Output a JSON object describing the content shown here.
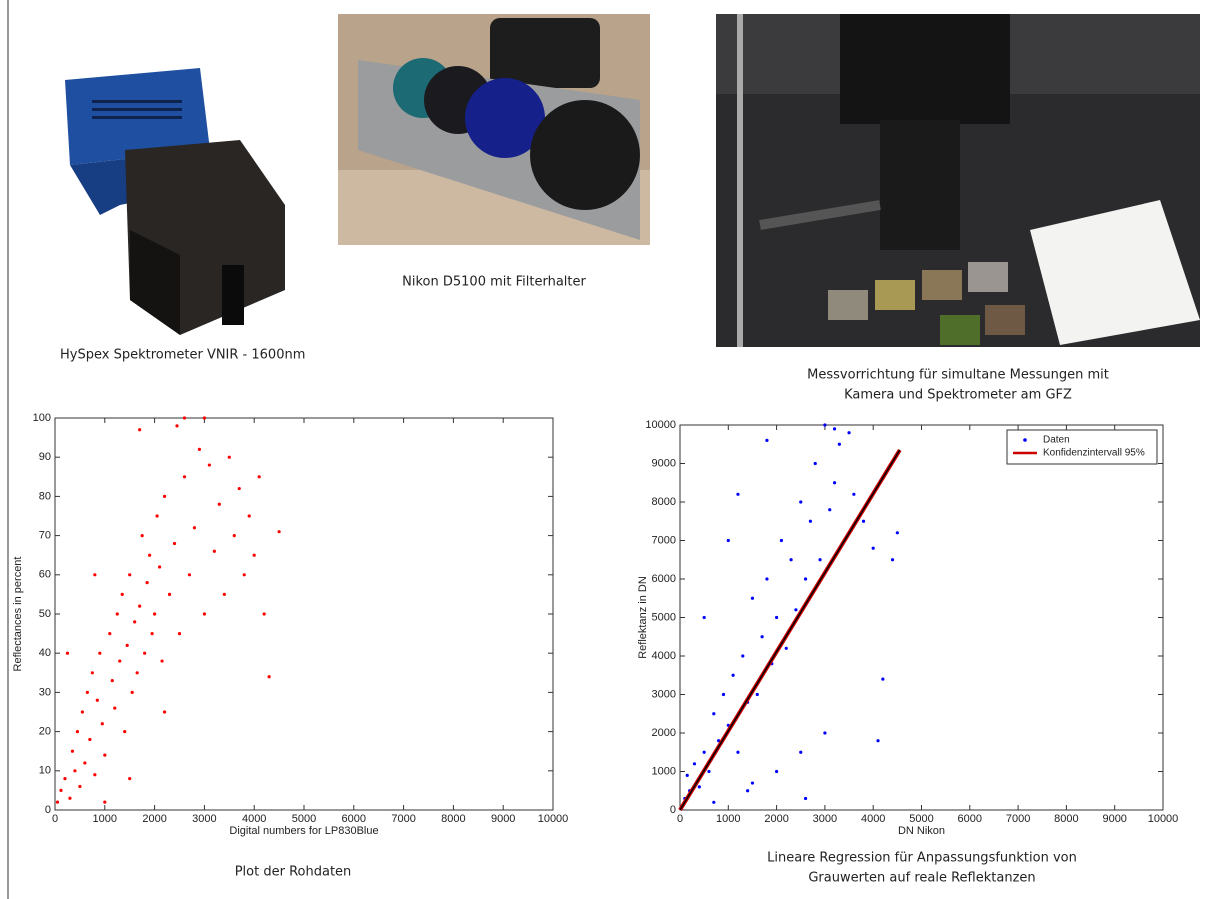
{
  "images": [
    {
      "caption": [
        "HySpex Spektrometer VNIR - 1600nm"
      ]
    },
    {
      "caption": [
        "Nikon D5100 mit Filterhalter"
      ]
    },
    {
      "caption": [
        "Messvorrichtung für simultane Messungen mit",
        "Kamera und Spektrometer am GFZ"
      ]
    }
  ],
  "chart_data": [
    {
      "type": "scatter",
      "caption": [
        "Plot der Rohdaten"
      ],
      "xlabel": "Digital numbers for LP830Blue",
      "ylabel": "Reflectances in percent",
      "xlim": [
        0,
        10000
      ],
      "ylim": [
        0,
        100
      ],
      "xticks": [
        0,
        1000,
        2000,
        3000,
        4000,
        5000,
        6000,
        7000,
        8000,
        9000,
        10000
      ],
      "yticks": [
        0,
        10,
        20,
        30,
        40,
        50,
        60,
        70,
        80,
        90,
        100
      ],
      "series": [
        {
          "color": "#ff0000",
          "x": [
            50,
            120,
            200,
            300,
            350,
            400,
            450,
            500,
            550,
            600,
            650,
            700,
            750,
            800,
            850,
            900,
            950,
            1000,
            1100,
            1150,
            1200,
            1250,
            1300,
            1350,
            1400,
            1450,
            1500,
            1550,
            1600,
            1650,
            1700,
            1750,
            1800,
            1850,
            1900,
            1950,
            2000,
            2050,
            2100,
            2150,
            2200,
            2300,
            2400,
            2450,
            2500,
            2600,
            2700,
            2800,
            2900,
            3000,
            3100,
            3200,
            3300,
            3400,
            3500,
            3600,
            3700,
            3800,
            3900,
            4000,
            4100,
            4200,
            4300,
            4500,
            250,
            800,
            1500,
            2200,
            2600,
            3000,
            1000,
            1700
          ],
          "y": [
            2,
            5,
            8,
            3,
            15,
            10,
            20,
            6,
            25,
            12,
            30,
            18,
            35,
            9,
            28,
            40,
            22,
            14,
            45,
            33,
            26,
            50,
            38,
            55,
            20,
            42,
            60,
            30,
            48,
            35,
            52,
            70,
            40,
            58,
            65,
            45,
            50,
            75,
            62,
            38,
            80,
            55,
            68,
            98,
            45,
            85,
            60,
            72,
            92,
            50,
            88,
            66,
            78,
            55,
            90,
            70,
            82,
            60,
            75,
            65,
            85,
            50,
            34,
            71,
            40,
            60,
            8,
            25,
            100,
            100,
            2,
            97
          ]
        }
      ]
    },
    {
      "type": "scatter",
      "caption": [
        "Lineare Regression für Anpassungsfunktion von",
        "Grauwerten auf reale Reflektanzen"
      ],
      "xlabel": "DN Nikon",
      "ylabel": "Reflektanz in DN",
      "xlim": [
        0,
        10000
      ],
      "ylim": [
        0,
        10000
      ],
      "xticks": [
        0,
        1000,
        2000,
        3000,
        4000,
        5000,
        6000,
        7000,
        8000,
        9000,
        10000
      ],
      "yticks": [
        0,
        1000,
        2000,
        3000,
        4000,
        5000,
        6000,
        7000,
        8000,
        9000,
        10000
      ],
      "legend": "upper right",
      "series": [
        {
          "name": "Daten",
          "color": "#0000ff",
          "mode": "markers",
          "x": [
            50,
            100,
            150,
            200,
            300,
            400,
            500,
            600,
            700,
            800,
            900,
            1000,
            1100,
            1200,
            1300,
            1400,
            1500,
            1600,
            1700,
            1800,
            1900,
            2000,
            2100,
            2200,
            2300,
            2400,
            2500,
            2600,
            2700,
            2800,
            2900,
            3000,
            3100,
            3200,
            3300,
            3400,
            3500,
            3600,
            3800,
            4000,
            4200,
            4400,
            4500,
            500,
            1000,
            1500,
            2000,
            2500,
            3000,
            1200,
            1800,
            2600,
            3200,
            4100,
            700,
            1400
          ],
          "y": [
            100,
            300,
            900,
            500,
            1200,
            600,
            1500,
            1000,
            2500,
            1800,
            3000,
            2200,
            3500,
            1500,
            4000,
            2800,
            5500,
            3000,
            4500,
            6000,
            3800,
            5000,
            7000,
            4200,
            6500,
            5200,
            8000,
            6000,
            7500,
            9000,
            6500,
            10000,
            7800,
            8500,
            9500,
            7000,
            9800,
            8200,
            7500,
            6800,
            3400,
            6500,
            7200,
            5000,
            7000,
            700,
            1000,
            1500,
            2000,
            8200,
            9600,
            300,
            9900,
            1800,
            200,
            500
          ]
        },
        {
          "name": "Konfidenzintervall 95%",
          "color": "#cc0000",
          "mode": "line",
          "x": [
            0,
            4550
          ],
          "y": [
            0,
            9350
          ]
        }
      ]
    }
  ]
}
